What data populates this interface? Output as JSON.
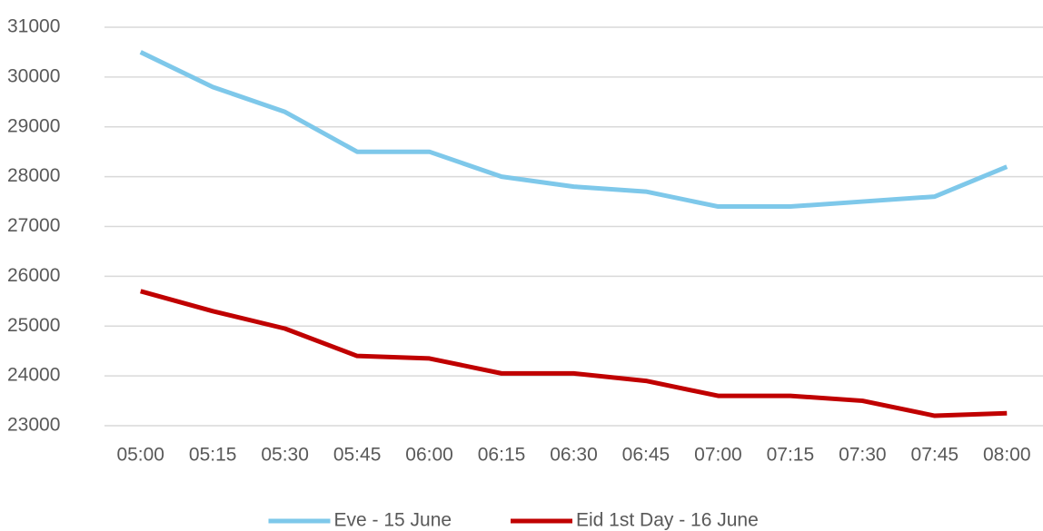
{
  "chart_data": {
    "type": "line",
    "categories": [
      "05:00",
      "05:15",
      "05:30",
      "05:45",
      "06:00",
      "06:15",
      "06:30",
      "06:45",
      "07:00",
      "07:15",
      "07:30",
      "07:45",
      "08:00"
    ],
    "series": [
      {
        "name": "Eve - 15 June",
        "color": "#7ec8ea",
        "values": [
          30500,
          29800,
          29300,
          28500,
          28500,
          28000,
          27800,
          27700,
          27400,
          27400,
          27500,
          27600,
          28200
        ]
      },
      {
        "name": "Eid 1st Day - 16 June",
        "color": "#c00000",
        "values": [
          25700,
          25300,
          24950,
          24400,
          24350,
          24050,
          24050,
          23900,
          23600,
          23600,
          23500,
          23200,
          23250
        ]
      }
    ],
    "ylim": [
      23000,
      31000
    ],
    "yticks": [
      23000,
      24000,
      25000,
      26000,
      27000,
      28000,
      29000,
      30000,
      31000
    ],
    "grid": true,
    "legend": "bottom"
  }
}
